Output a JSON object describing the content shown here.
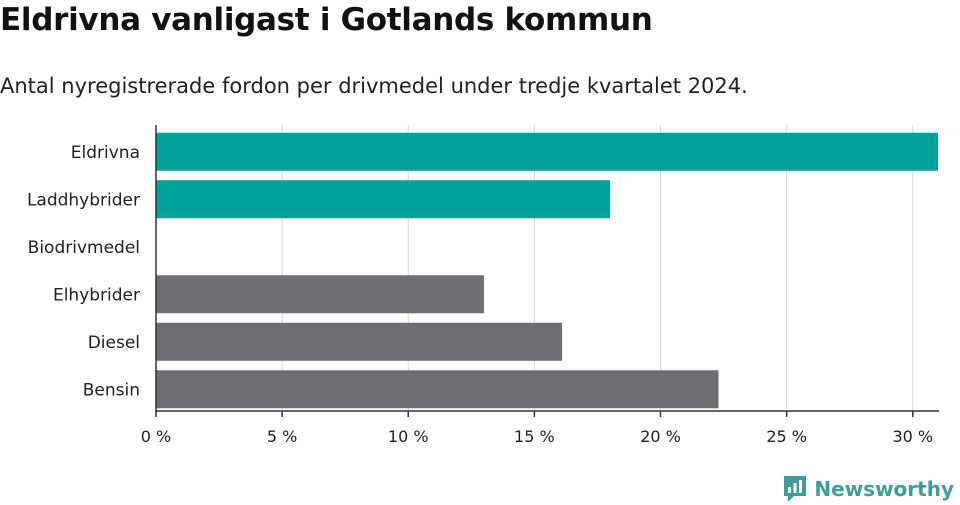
{
  "title": "Eldrivna vanligast i Gotlands kommun",
  "subtitle": "Antal nyregistrerade fordon per drivmedel under tredje kvartalet 2024.",
  "brand": {
    "name": "Newsworthy",
    "color": "#3e9e97"
  },
  "colors": {
    "highlight": "#00a29a",
    "default": "#6e6e73",
    "grid": "#d9d9d9",
    "axis": "#333333"
  },
  "chart_data": {
    "type": "bar",
    "orientation": "horizontal",
    "categories": [
      "Eldrivna",
      "Laddhybrider",
      "Biodrivmedel",
      "Elhybrider",
      "Diesel",
      "Bensin"
    ],
    "values": [
      31.0,
      18.0,
      0,
      13.0,
      16.1,
      22.3
    ],
    "highlighted": [
      true,
      true,
      false,
      false,
      false,
      false
    ],
    "xlim": [
      0,
      31
    ],
    "xticks": [
      0,
      5,
      10,
      15,
      20,
      25,
      30
    ],
    "xtick_labels": [
      "0 %",
      "5 %",
      "10 %",
      "15 %",
      "20 %",
      "25 %",
      "30 %"
    ],
    "grid": true
  }
}
